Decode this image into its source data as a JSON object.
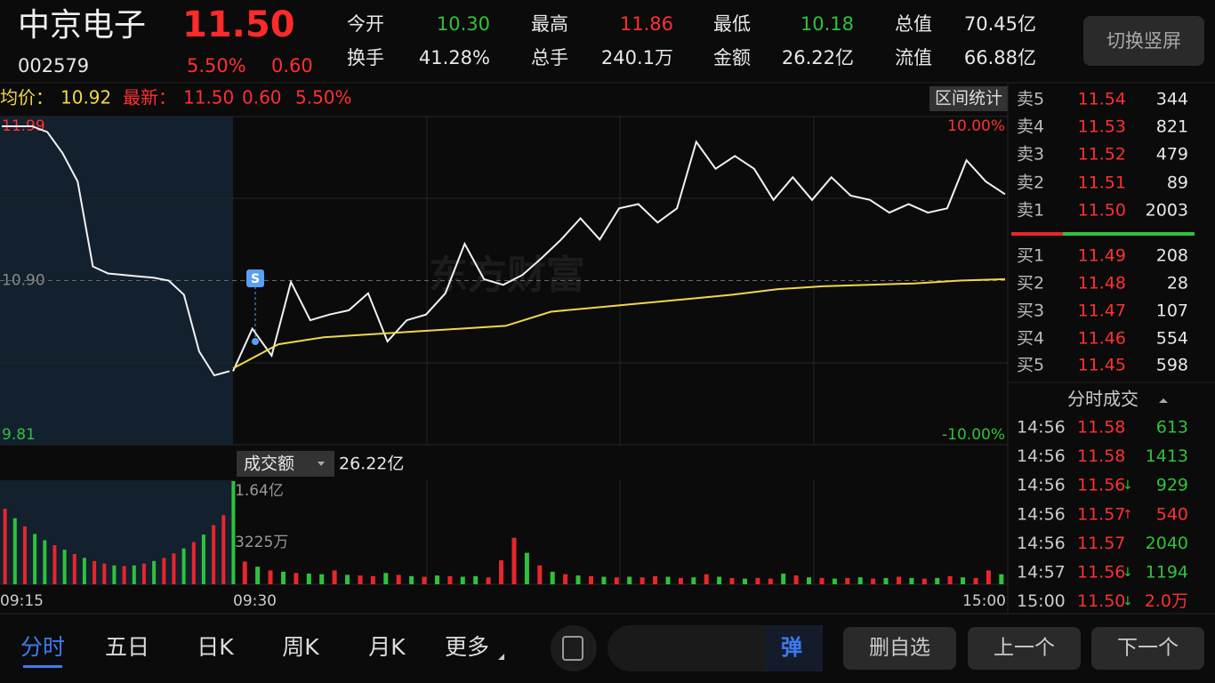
{
  "header": {
    "name": "中京电子",
    "price": "11.50",
    "code": "002579",
    "change_pct": "5.50%",
    "change": "0.60",
    "stats": [
      {
        "label": "今开",
        "value": "10.30",
        "color": "#2fc23a"
      },
      {
        "label": "最高",
        "value": "11.86",
        "color": "#ff3030"
      },
      {
        "label": "最低",
        "value": "10.18",
        "color": "#2fc23a"
      },
      {
        "label": "总值",
        "value": "70.45亿",
        "color": "#e8e8e8"
      },
      {
        "label": "换手",
        "value": "41.28%",
        "color": "#e8e8e8"
      },
      {
        "label": "总手",
        "value": "240.1万",
        "color": "#e8e8e8"
      },
      {
        "label": "金额",
        "value": "26.22亿",
        "color": "#e8e8e8"
      },
      {
        "label": "流值",
        "value": "66.88亿",
        "color": "#e8e8e8"
      }
    ],
    "rotate_button": "切换竖屏"
  },
  "info": {
    "avg_label": "均价：",
    "avg": "10.92",
    "latest_label": "最新：",
    "latest": "11.50",
    "change": "0.60",
    "change_pct": "5.50%",
    "range_button": "区间统计"
  },
  "chart_data": {
    "type": "line",
    "ylim": [
      9.81,
      11.99
    ],
    "yticks": [
      11.99,
      {
        "value": 10.9,
        "label": "10.90"
      },
      9.81
    ],
    "pct_labels": [
      "10.00%",
      "-10.00%"
    ],
    "watermark": "东方财富",
    "marker": "S",
    "times": [
      "09:15",
      "09:30",
      "15:00"
    ],
    "auction_prices": [
      11.99,
      11.99,
      11.99,
      11.95,
      11.8,
      11.6,
      11.0,
      10.95,
      10.94,
      10.93,
      10.92,
      10.9,
      10.8,
      10.4,
      10.23,
      10.26
    ],
    "series": [
      {
        "name": "最新",
        "color": "#f2f2f2",
        "values": [
          10.26,
          10.56,
          10.37,
          10.89,
          10.62,
          10.66,
          10.69,
          10.81,
          10.47,
          10.62,
          10.66,
          10.81,
          11.16,
          10.91,
          10.87,
          10.94,
          11.06,
          11.19,
          11.34,
          11.19,
          11.41,
          11.44,
          11.31,
          11.41,
          11.88,
          11.69,
          11.78,
          11.69,
          11.47,
          11.63,
          11.47,
          11.63,
          11.5,
          11.47,
          11.38,
          11.44,
          11.38,
          11.41,
          11.75,
          11.6,
          11.51
        ]
      },
      {
        "name": "均价",
        "color": "#f2d64b",
        "values": [
          10.28,
          10.45,
          10.5,
          10.52,
          10.54,
          10.56,
          10.58,
          10.68,
          10.71,
          10.74,
          10.77,
          10.8,
          10.84,
          10.86,
          10.87,
          10.88,
          10.9,
          10.91
        ]
      }
    ]
  },
  "volume": {
    "label": "成交额",
    "total": "26.22亿",
    "ticks": [
      "1.64亿",
      "3225万"
    ],
    "ylim": [
      0,
      16400
    ],
    "up_color": "#e8262b",
    "down_color": "#2fc23a",
    "auction": {
      "values": [
        12000,
        10500,
        9200,
        8000,
        7000,
        6200,
        5500,
        4800,
        4200,
        3700,
        3300,
        3000,
        2900,
        3000,
        3300,
        3700,
        4200,
        4900,
        5700,
        6700,
        7900,
        9400,
        11000,
        16400
      ],
      "dirs": [
        "up",
        "down",
        "up",
        "down",
        "down",
        "up",
        "down",
        "up",
        "down",
        "up",
        "up",
        "down",
        "up",
        "down",
        "up",
        "down",
        "up",
        "up",
        "down",
        "up",
        "down",
        "up",
        "up",
        "down"
      ]
    },
    "session": {
      "values": [
        3600,
        2800,
        2200,
        2000,
        1800,
        1700,
        1600,
        2200,
        1500,
        1400,
        1300,
        1800,
        1500,
        1300,
        1200,
        1400,
        1300,
        1200,
        1300,
        1100,
        3800,
        7400,
        5000,
        3000,
        2000,
        1600,
        1400,
        1300,
        1200,
        1100,
        1200,
        1100,
        1300,
        1200,
        1000,
        1100,
        1600,
        1200,
        1000,
        900,
        1000,
        900,
        1700,
        1400,
        1100,
        1000,
        900,
        1000,
        1100,
        900,
        1000,
        1200,
        1000,
        900,
        1000,
        1300,
        1100,
        1000,
        2200,
        1600
      ],
      "dirs": [
        "up",
        "down",
        "up",
        "down",
        "up",
        "down",
        "down",
        "up",
        "down",
        "up",
        "up",
        "down",
        "up",
        "down",
        "up",
        "down",
        "up",
        "down",
        "down",
        "up",
        "up",
        "up",
        "down",
        "up",
        "down",
        "up",
        "down",
        "up",
        "down",
        "up",
        "down",
        "up",
        "up",
        "down",
        "up",
        "down",
        "up",
        "down",
        "up",
        "down",
        "up",
        "up",
        "down",
        "up",
        "down",
        "up",
        "down",
        "up",
        "down",
        "up",
        "down",
        "up",
        "down",
        "up",
        "down",
        "up",
        "down",
        "up",
        "up",
        "down"
      ]
    }
  },
  "order_book": {
    "asks": [
      {
        "label": "卖5",
        "price": "11.54",
        "volume": "344"
      },
      {
        "label": "卖4",
        "price": "11.53",
        "volume": "821"
      },
      {
        "label": "卖3",
        "price": "11.52",
        "volume": "479"
      },
      {
        "label": "卖2",
        "price": "11.51",
        "volume": "89"
      },
      {
        "label": "卖1",
        "price": "11.50",
        "volume": "2003"
      }
    ],
    "bids": [
      {
        "label": "买1",
        "price": "11.49",
        "volume": "208"
      },
      {
        "label": "买2",
        "price": "11.48",
        "volume": "28"
      },
      {
        "label": "买3",
        "price": "11.47",
        "volume": "107"
      },
      {
        "label": "买4",
        "price": "11.46",
        "volume": "554"
      },
      {
        "label": "买5",
        "price": "11.45",
        "volume": "598"
      }
    ]
  },
  "trades": {
    "title": "分时成交",
    "rows": [
      {
        "time": "14:56",
        "price": "11.58",
        "volume": "613",
        "volume_color": "#2fc23a"
      },
      {
        "time": "14:56",
        "price": "11.58",
        "volume": "1413",
        "volume_color": "#2fc23a"
      },
      {
        "time": "14:56",
        "price": "11.56",
        "arrow": "↓",
        "volume": "929",
        "volume_color": "#2fc23a"
      },
      {
        "time": "14:56",
        "price": "11.57",
        "arrow": "↑",
        "volume": "540",
        "volume_color": "#ff3030"
      },
      {
        "time": "14:56",
        "price": "11.57",
        "volume": "2040",
        "volume_color": "#2fc23a"
      },
      {
        "time": "14:57",
        "price": "11.56",
        "arrow": "↓",
        "volume": "1194",
        "volume_color": "#2fc23a"
      },
      {
        "time": "15:00",
        "price": "11.50",
        "arrow": "↓",
        "volume": "2.0万",
        "volume_color": "#ff3030"
      }
    ]
  },
  "bottom": {
    "tabs": [
      "分时",
      "五日",
      "日K",
      "周K",
      "月K",
      "更多"
    ],
    "active_tab": 0,
    "search_badge": "弹",
    "buttons": [
      "删自选",
      "上一个",
      "下一个"
    ]
  }
}
